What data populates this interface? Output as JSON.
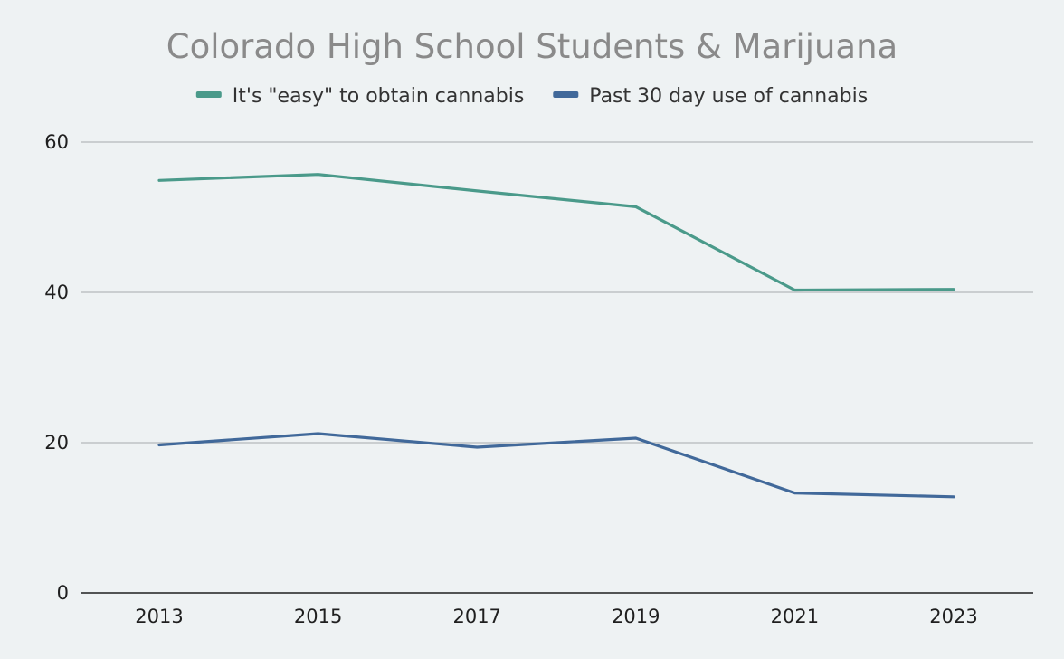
{
  "chart_data": {
    "type": "line",
    "title": "Colorado High School Students & Marijuana",
    "xlabel": "",
    "ylabel": "",
    "categories": [
      "2013",
      "2015",
      "2017",
      "2019",
      "2021",
      "2023"
    ],
    "ylim": [
      0,
      60
    ],
    "yticks": [
      0,
      20,
      40,
      60
    ],
    "grid": true,
    "legend_position": "top-center",
    "series": [
      {
        "name": "It's \"easy\" to obtain cannabis",
        "color": "#4a9a8a",
        "values": [
          54.9,
          55.7,
          53.5,
          51.4,
          40.3,
          40.4
        ]
      },
      {
        "name": "Past 30 day use of cannabis",
        "color": "#41699a",
        "values": [
          19.7,
          21.2,
          19.4,
          20.6,
          13.3,
          12.8
        ]
      }
    ]
  }
}
